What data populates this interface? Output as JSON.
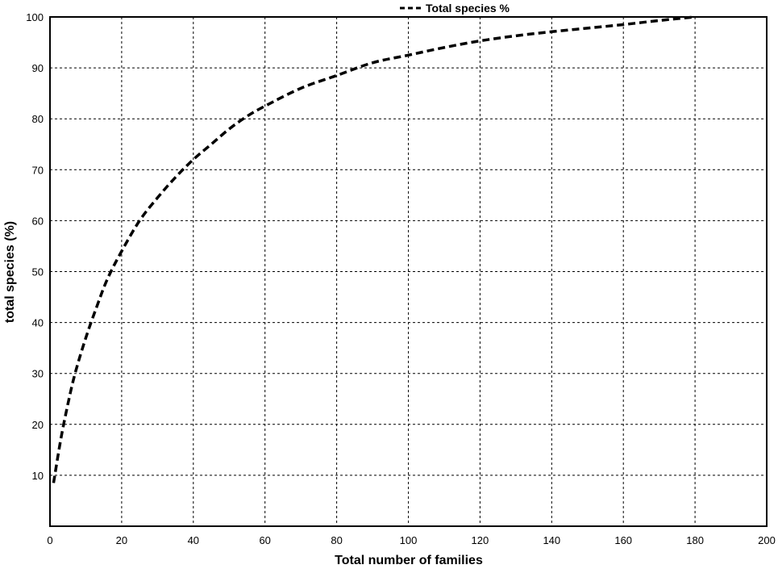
{
  "chart_data": {
    "type": "line",
    "title": "",
    "xlabel": "Total number of families",
    "ylabel": "total species (%)",
    "xlim": [
      0,
      200
    ],
    "ylim": [
      0,
      100
    ],
    "x_ticks": [
      0,
      20,
      40,
      60,
      80,
      100,
      120,
      140,
      160,
      180,
      200
    ],
    "y_ticks": [
      10,
      20,
      30,
      40,
      50,
      60,
      70,
      80,
      90,
      100
    ],
    "grid": true,
    "legend_position": "top-center",
    "series": [
      {
        "name": "Total species %",
        "line_style": "dashed",
        "color": "#000000",
        "x": [
          1,
          3,
          5,
          7,
          10,
          13,
          16,
          20,
          25,
          30,
          35,
          40,
          45,
          50,
          55,
          60,
          70,
          80,
          90,
          100,
          110,
          120,
          130,
          140,
          150,
          160,
          170,
          180
        ],
        "y": [
          8.5,
          17,
          24,
          30,
          37,
          43,
          48.5,
          54,
          60,
          64.5,
          68.5,
          72,
          75,
          78,
          80.5,
          82.5,
          86,
          88.5,
          91,
          92.5,
          94,
          95.3,
          96.3,
          97.1,
          97.8,
          98.5,
          99.3,
          100
        ]
      }
    ]
  }
}
